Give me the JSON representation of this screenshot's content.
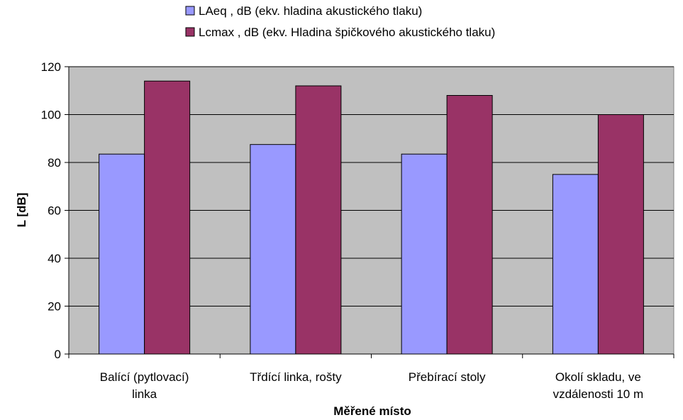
{
  "chart_data": {
    "type": "bar",
    "title": "",
    "xlabel": "Měřené místo",
    "ylabel": "L [dB]",
    "ylim": [
      0,
      120
    ],
    "yticks": [
      0,
      20,
      40,
      60,
      80,
      100,
      120
    ],
    "grid": true,
    "legend_position": "top",
    "categories": [
      [
        "Balící (pytlovací)",
        "linka"
      ],
      [
        "Třdící linka, rošty"
      ],
      [
        "Přebírací stoly"
      ],
      [
        "Okolí skladu, ve",
        "vzdálenosti 10 m"
      ]
    ],
    "series": [
      {
        "name": "LAeq , dB (ekv. hladina akustického tlaku)",
        "color": "#9999ff",
        "values": [
          83.5,
          87.5,
          83.5,
          75
        ]
      },
      {
        "name": "Lcmax , dB (ekv. Hladina špičkového akustického tlaku)",
        "color": "#993366",
        "values": [
          114,
          112,
          108,
          100
        ]
      }
    ],
    "plot_background": "#c0c0c0"
  }
}
